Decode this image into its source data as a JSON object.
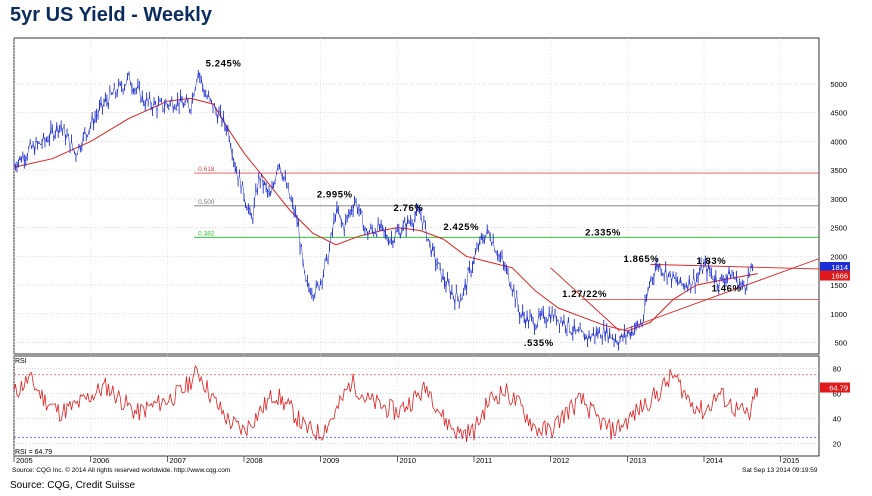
{
  "page": {
    "title": "5yr US Yield - Weekly",
    "source": "Source: CQG, Credit Suisse"
  },
  "footer": {
    "left": "Source: CQG Inc. © 2014 All rights reserved worldwide. http://www.cqg.com",
    "right": "Sat Sep 13 2014 09:19:59"
  },
  "colors": {
    "price": "#1f2fd0",
    "ma": "#e02020",
    "rsi": "#e02020",
    "fib_618": "#e05050",
    "fib_500": "#777777",
    "fib_382": "#35c435",
    "tag_blue": "#1a2fd6",
    "tag_red": "#e01a1a"
  },
  "chart_data": {
    "type": "line",
    "y_axis": {
      "ticks": [
        500,
        1000,
        1500,
        2000,
        2500,
        3000,
        3500,
        4000,
        4500,
        5000
      ],
      "ylim": [
        300,
        5800
      ]
    },
    "x_axis": {
      "ticks": [
        "2005",
        "2006",
        "2007",
        "2008",
        "2009",
        "2010",
        "2011",
        "2012",
        "2013",
        "2014",
        "2015"
      ],
      "xlim": [
        2005.0,
        2015.5
      ]
    },
    "series": [
      {
        "style": "weekly-bars",
        "x": [
          2005.0,
          2005.2,
          2005.4,
          2005.6,
          2005.8,
          2006.0,
          2006.2,
          2006.4,
          2006.5,
          2006.7,
          2006.9,
          2007.1,
          2007.3,
          2007.4,
          2007.5,
          2007.6,
          2007.8,
          2007.9,
          2008.0,
          2008.1,
          2008.2,
          2008.35,
          2008.45,
          2008.6,
          2008.7,
          2008.8,
          2008.95,
          2009.0,
          2009.1,
          2009.2,
          2009.3,
          2009.45,
          2009.6,
          2009.75,
          2009.9,
          2010.0,
          2010.15,
          2010.3,
          2010.45,
          2010.6,
          2010.75,
          2010.85,
          2010.95,
          2011.1,
          2011.2,
          2011.3,
          2011.5,
          2011.6,
          2011.7,
          2011.8,
          2012.0,
          2012.2,
          2012.35,
          2012.5,
          2012.7,
          2012.9,
          2013.0,
          2013.2,
          2013.3,
          2013.4,
          2013.6,
          2013.7,
          2013.9,
          2014.0,
          2014.2,
          2014.35,
          2014.5,
          2014.65
        ],
        "y": [
          3600,
          3850,
          4000,
          4300,
          3800,
          4300,
          4700,
          4950,
          5100,
          4700,
          4600,
          4700,
          4600,
          5245,
          4800,
          4600,
          4200,
          3500,
          3100,
          2600,
          3400,
          3000,
          3700,
          3000,
          2600,
          1500,
          1400,
          1600,
          2000,
          2800,
          2500,
          2995,
          2400,
          2500,
          2300,
          2400,
          2600,
          2760,
          2100,
          1600,
          1300,
          1300,
          1750,
          2300,
          2425,
          2100,
          1500,
          1000,
          900,
          850,
          1000,
          850,
          620,
          600,
          700,
          535,
          650,
          850,
          1600,
          1865,
          1600,
          1500,
          1600,
          1830,
          1550,
          1700,
          1460,
          1800
        ]
      },
      {
        "style": "moving-average",
        "x": [
          2005.0,
          2005.5,
          2006.0,
          2006.5,
          2007.0,
          2007.3,
          2007.6,
          2007.8,
          2008.0,
          2008.3,
          2008.6,
          2008.9,
          2009.2,
          2009.5,
          2009.8,
          2010.0,
          2010.3,
          2010.6,
          2010.9,
          2011.2,
          2011.5,
          2011.8,
          2012.1,
          2012.4,
          2012.7,
          2013.0,
          2013.3,
          2013.6,
          2013.9,
          2014.2,
          2014.5,
          2014.7
        ],
        "y": [
          3550,
          3700,
          4000,
          4400,
          4700,
          4750,
          4650,
          4200,
          3800,
          3300,
          2800,
          2400,
          2200,
          2350,
          2450,
          2500,
          2450,
          2300,
          2000,
          1900,
          1800,
          1400,
          1100,
          950,
          800,
          700,
          850,
          1250,
          1500,
          1580,
          1650,
          1700
        ]
      }
    ],
    "levels": [
      {
        "label": "0.618",
        "value": 3450
      },
      {
        "label": "0.500",
        "value": 2880
      },
      {
        "label": "0.382",
        "value": 2330
      },
      {
        "label": "",
        "value": 1250
      }
    ],
    "annotations": [
      {
        "text": "5.245%",
        "x": 2007.5,
        "y": 5300
      },
      {
        "text": "2.995%",
        "x": 2008.95,
        "y": 3020
      },
      {
        "text": "2.76%",
        "x": 2009.95,
        "y": 2790
      },
      {
        "text": "2.425%",
        "x": 2010.6,
        "y": 2460
      },
      {
        "text": "2.335%",
        "x": 2012.45,
        "y": 2360
      },
      {
        "text": "1.865%",
        "x": 2012.95,
        "y": 1900
      },
      {
        "text": "1.83%",
        "x": 2013.9,
        "y": 1870
      },
      {
        "text": "1.27/22%",
        "x": 2012.15,
        "y": 1290
      },
      {
        "text": "1.46%",
        "x": 2014.1,
        "y": 1390
      },
      {
        "text": ".535%",
        "x": 2011.65,
        "y": 440
      }
    ],
    "tags": [
      {
        "text": "1814",
        "value": 1814
      },
      {
        "text": "1666",
        "value": 1666
      }
    ],
    "rsi": {
      "label": "RSI",
      "readout": "RSI = 64.79",
      "value_tag": "64.79",
      "ticks": [
        20,
        40,
        60,
        80
      ],
      "ylim": [
        10,
        90
      ],
      "bands": [
        75,
        25
      ],
      "x": [
        2005.0,
        2005.2,
        2005.4,
        2005.6,
        2005.8,
        2006.0,
        2006.2,
        2006.4,
        2006.6,
        2006.8,
        2007.0,
        2007.2,
        2007.4,
        2007.6,
        2007.8,
        2008.0,
        2008.2,
        2008.4,
        2008.6,
        2008.8,
        2009.0,
        2009.2,
        2009.4,
        2009.6,
        2009.8,
        2010.0,
        2010.2,
        2010.4,
        2010.6,
        2010.8,
        2011.0,
        2011.2,
        2011.4,
        2011.6,
        2011.8,
        2012.0,
        2012.2,
        2012.4,
        2012.6,
        2012.8,
        2013.0,
        2013.2,
        2013.4,
        2013.6,
        2013.8,
        2014.0,
        2014.2,
        2014.4,
        2014.6,
        2014.7
      ],
      "y": [
        60,
        72,
        55,
        45,
        50,
        58,
        66,
        55,
        44,
        50,
        55,
        62,
        78,
        55,
        38,
        30,
        45,
        60,
        48,
        32,
        28,
        45,
        70,
        55,
        50,
        45,
        55,
        65,
        40,
        28,
        30,
        55,
        62,
        50,
        32,
        30,
        45,
        55,
        40,
        30,
        38,
        50,
        60,
        75,
        55,
        45,
        60,
        48,
        42,
        64.79
      ]
    }
  }
}
